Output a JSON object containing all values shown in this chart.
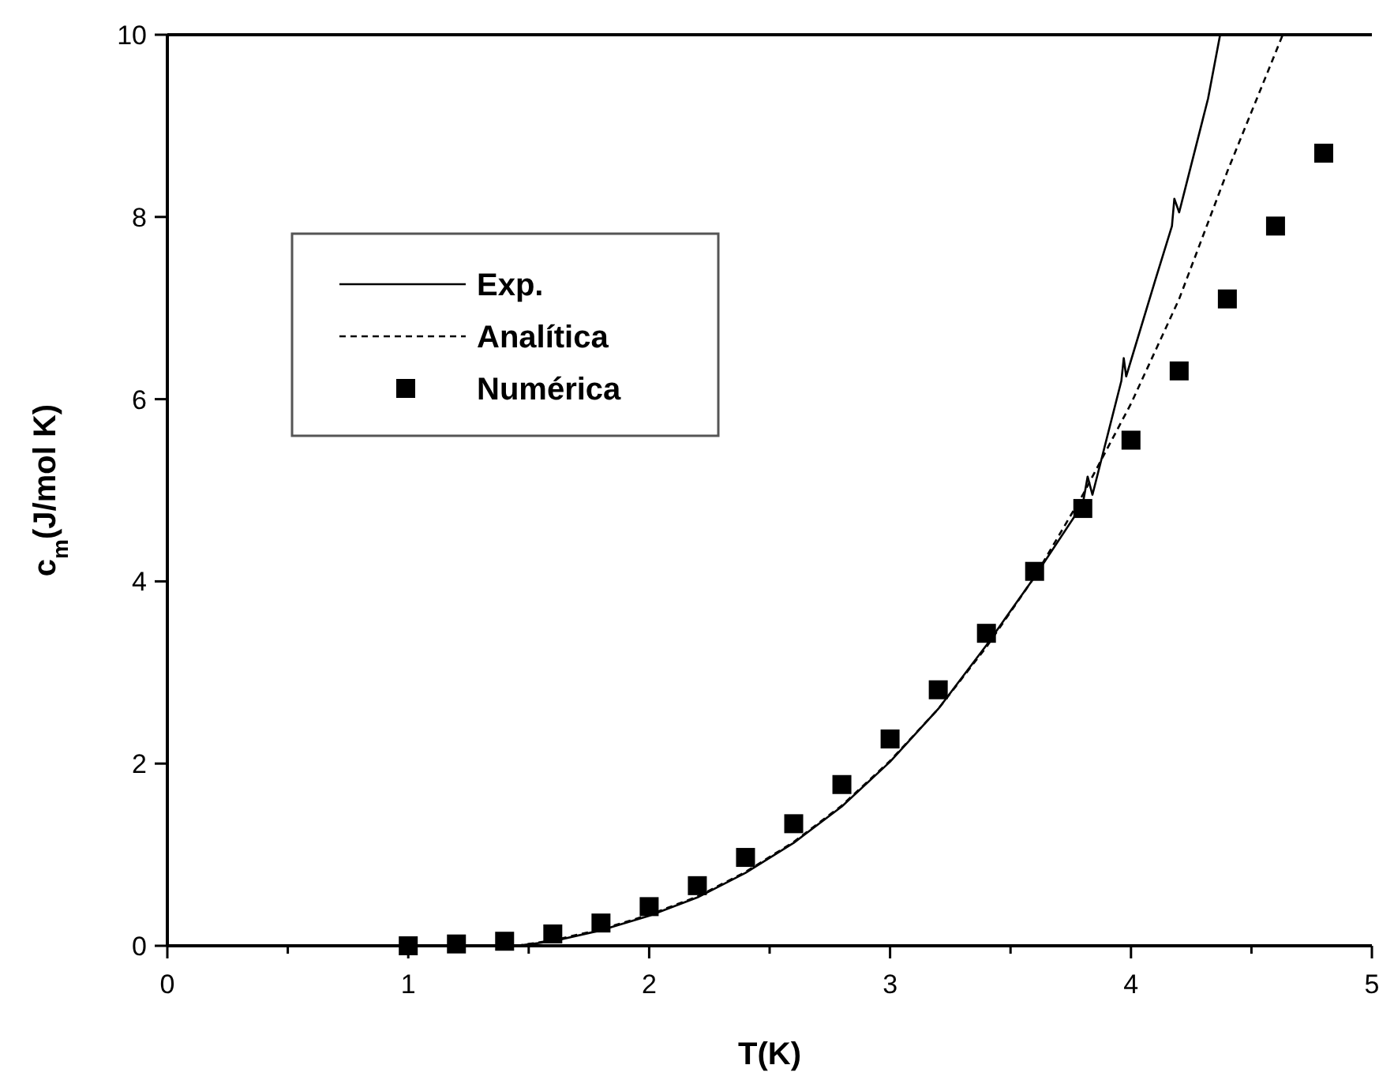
{
  "chart_data": {
    "type": "line",
    "xlabel": "T(K)",
    "ylabel": "c$_{m}$(J/mol K)",
    "xlim": [
      0,
      5
    ],
    "ylim": [
      0,
      10
    ],
    "xticks": [
      0,
      {
        "value": 0.5,
        "label": null
      },
      1,
      {
        "value": 1.5,
        "label": null
      },
      2,
      {
        "value": 2.5,
        "label": null
      },
      3,
      {
        "value": 3.5,
        "label": null
      },
      4,
      {
        "value": 4.5,
        "label": null
      },
      5
    ],
    "yticks": [
      0,
      2,
      4,
      6,
      8,
      10
    ],
    "grid": false,
    "legend": "top left",
    "series": [
      {
        "name": "Exp.",
        "color": "#000000",
        "line_style": "solid",
        "marker": "none",
        "x": [
          1.45,
          1.6,
          1.8,
          2.0,
          2.2,
          2.4,
          2.6,
          2.8,
          3.0,
          3.2,
          3.4,
          3.6,
          3.8,
          3.82,
          3.84,
          3.96,
          3.97,
          3.98,
          4.1,
          4.17,
          4.18,
          4.2,
          4.32,
          4.37
        ],
        "values": [
          0,
          0.05,
          0.17,
          0.33,
          0.53,
          0.8,
          1.13,
          1.53,
          2.02,
          2.6,
          3.3,
          4.05,
          4.85,
          5.15,
          4.95,
          6.2,
          6.45,
          6.25,
          7.3,
          7.9,
          8.2,
          8.05,
          9.3,
          10
        ]
      },
      {
        "name": "Analítica",
        "color": "#000000",
        "line_style": "dashed",
        "marker": "none",
        "x": [
          1.45,
          1.6,
          1.8,
          2.0,
          2.2,
          2.4,
          2.6,
          2.8,
          3.0,
          3.2,
          3.4,
          3.6,
          3.8,
          4.0,
          4.2,
          4.4,
          4.63
        ],
        "values": [
          0,
          0.06,
          0.18,
          0.34,
          0.54,
          0.81,
          1.14,
          1.54,
          2.03,
          2.6,
          3.28,
          4.05,
          4.95,
          5.95,
          7.1,
          8.5,
          10
        ]
      },
      {
        "name": "Numérica",
        "type": "scatter",
        "color": "#000000",
        "marker": "square",
        "x": [
          1.0,
          1.2,
          1.4,
          1.6,
          1.8,
          2.0,
          2.2,
          2.4,
          2.6,
          2.8,
          3.0,
          3.2,
          3.4,
          3.6,
          3.8,
          4.0,
          4.2,
          4.4,
          4.6,
          4.8
        ],
        "values": [
          0,
          0.02,
          0.05,
          0.13,
          0.25,
          0.43,
          0.66,
          0.97,
          1.34,
          1.77,
          2.27,
          2.81,
          3.43,
          4.11,
          4.8,
          5.55,
          6.31,
          7.1,
          7.9,
          8.7
        ]
      }
    ]
  }
}
